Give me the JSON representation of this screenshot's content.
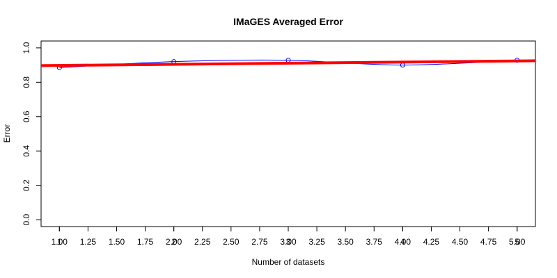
{
  "chart_data": {
    "type": "line",
    "title": "IMaGES Averaged Error",
    "xlabel": "Number of datasets",
    "ylabel": "Error",
    "xlim": [
      0.84,
      5.16
    ],
    "ylim": [
      -0.04,
      1.04
    ],
    "grid": false,
    "legend": "none",
    "x_ticks_primary": [
      "1",
      "2",
      "3",
      "4",
      "5"
    ],
    "x_ticks_secondary": [
      "1.00",
      "1.25",
      "1.50",
      "1.75",
      "2.00",
      "2.25",
      "2.50",
      "2.75",
      "3.00",
      "3.25",
      "3.50",
      "3.75",
      "4.00",
      "4.25",
      "4.50",
      "4.75",
      "5.00"
    ],
    "y_ticks": [
      "0.0",
      "0.2",
      "0.4",
      "0.6",
      "0.8",
      "1.0"
    ],
    "series": [
      {
        "type": "line+points",
        "color": "#0000ff",
        "x": [
          1,
          2,
          3,
          4,
          5
        ],
        "y": [
          0.885,
          0.92,
          0.928,
          0.9,
          0.928
        ]
      },
      {
        "type": "fit-line",
        "color": "#ff0000",
        "x": [
          0.84,
          5.16
        ],
        "y": [
          0.897,
          0.925
        ]
      }
    ]
  }
}
